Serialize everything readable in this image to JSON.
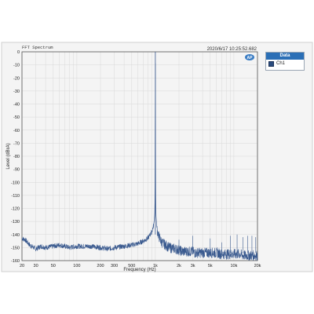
{
  "chart_data": {
    "type": "line",
    "title": "FFT Spectrum",
    "timestamp": "2020/6/17 10:25:52.682",
    "logo": "AP",
    "xlabel": "Frequency (Hz)",
    "ylabel": "Level (dBrA)",
    "xscale": "log",
    "xlim": [
      20,
      20000
    ],
    "ylim": [
      -160,
      0
    ],
    "xticks": [
      {
        "value": 20,
        "label": "20"
      },
      {
        "value": 30,
        "label": "30"
      },
      {
        "value": 50,
        "label": "50"
      },
      {
        "value": 100,
        "label": "100"
      },
      {
        "value": 200,
        "label": "200"
      },
      {
        "value": 300,
        "label": "300"
      },
      {
        "value": 500,
        "label": "500"
      },
      {
        "value": 1000,
        "label": "1k"
      },
      {
        "value": 2000,
        "label": "2k"
      },
      {
        "value": 3000,
        "label": "3k"
      },
      {
        "value": 5000,
        "label": "5k"
      },
      {
        "value": 10000,
        "label": "10k"
      },
      {
        "value": 20000,
        "label": "20k"
      }
    ],
    "yticks": [
      0,
      -10,
      -20,
      -30,
      -40,
      -50,
      -60,
      -70,
      -80,
      -90,
      -100,
      -110,
      -120,
      -130,
      -140,
      -150,
      -160
    ],
    "grid": true,
    "legend_title": "Data",
    "series": [
      {
        "name": "Ch1",
        "color": "#3a5a8f",
        "x": [
          20,
          22,
          25,
          30,
          35,
          40,
          50,
          60,
          70,
          80,
          100,
          120,
          150,
          200,
          250,
          300,
          400,
          500,
          600,
          700,
          800,
          900,
          950,
          980,
          990,
          995,
          1000,
          1005,
          1010,
          1020,
          1050,
          1100,
          1200,
          1500,
          1800,
          2000,
          2200,
          2500,
          2800,
          3000,
          3200,
          3500,
          4000,
          4500,
          5000,
          5500,
          6000,
          7000,
          8000,
          9000,
          10000,
          11000,
          12000,
          13000,
          15000,
          17000,
          20000
        ],
        "y": [
          -143,
          -144,
          -148,
          -151,
          -149,
          -150,
          -149,
          -148,
          -149,
          -150,
          -149,
          -149,
          -149,
          -150,
          -151,
          -150,
          -149,
          -148,
          -147,
          -145,
          -143,
          -138,
          -133,
          -125,
          -110,
          -60,
          0,
          -60,
          -110,
          -126,
          -136,
          -141,
          -146,
          -150,
          -151,
          -152,
          -153,
          -153,
          -153,
          -153,
          -154,
          -154,
          -154,
          -154,
          -154,
          -154,
          -154,
          -155,
          -155,
          -155,
          -155,
          -155,
          -155,
          -156,
          -156,
          -156,
          -156
        ]
      }
    ],
    "spurs": [
      {
        "x": 2000,
        "y": -144
      },
      {
        "x": 3000,
        "y": -141
      },
      {
        "x": 5000,
        "y": -143
      },
      {
        "x": 7000,
        "y": -146
      },
      {
        "x": 9000,
        "y": -141
      },
      {
        "x": 11000,
        "y": -140
      },
      {
        "x": 13000,
        "y": -142
      },
      {
        "x": 15000,
        "y": -141
      },
      {
        "x": 17000,
        "y": -141
      },
      {
        "x": 19000,
        "y": -142
      }
    ]
  }
}
